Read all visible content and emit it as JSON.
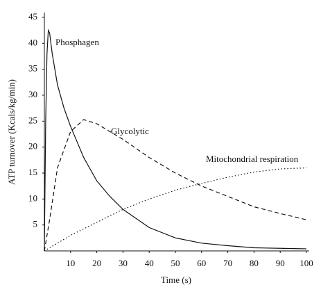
{
  "chart_data": {
    "type": "line",
    "xlabel": "Time (s)",
    "ylabel": "ATP turnover (Kcals/kg/min)",
    "xlim": [
      0,
      100
    ],
    "xticks": [
      10,
      20,
      30,
      40,
      50,
      60,
      70,
      80,
      90,
      100
    ],
    "ylim": [
      0,
      45
    ],
    "yticks": [
      5,
      10,
      15,
      20,
      25,
      30,
      35,
      40,
      45
    ],
    "series": [
      {
        "name": "Phosphagen",
        "color": "#111111",
        "style": "solid",
        "x": [
          0,
          0.5,
          1,
          1.5,
          2,
          3,
          5,
          7.5,
          10,
          15,
          20,
          25,
          30,
          40,
          50,
          60,
          70,
          80,
          90,
          100
        ],
        "values": [
          0,
          25,
          38,
          42.5,
          42,
          38,
          32,
          27.5,
          24,
          18,
          13.5,
          10.5,
          8,
          4.5,
          2.5,
          1.5,
          1,
          0.6,
          0.5,
          0.4
        ]
      },
      {
        "name": "Glycolytic",
        "color": "#111111",
        "style": "dashed",
        "x": [
          0,
          2,
          5,
          10,
          15,
          20,
          25,
          30,
          40,
          50,
          60,
          70,
          80,
          90,
          100
        ],
        "values": [
          0,
          6,
          16,
          23,
          25.3,
          24.5,
          23,
          21.5,
          18,
          15,
          12.5,
          10.5,
          8.5,
          7.2,
          6
        ]
      },
      {
        "name": "Mitochondrial respiration",
        "color": "#111111",
        "style": "dotted",
        "x": [
          0,
          10,
          20,
          30,
          40,
          50,
          60,
          70,
          80,
          90,
          100
        ],
        "values": [
          0,
          3,
          5.5,
          8,
          10,
          11.7,
          13,
          14.2,
          15.2,
          15.8,
          16
        ]
      }
    ]
  }
}
